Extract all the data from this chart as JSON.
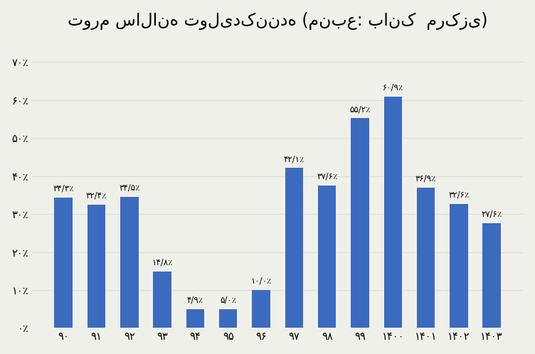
{
  "title": "تورم سالانه تولیدکننده (منبع: بانک  مرکزی)",
  "categories": [
    "۹۰",
    "۹۱",
    "۹۲",
    "۹۳",
    "۹۴",
    "۹۵",
    "۹۶",
    "۹۷",
    "۹۸",
    "۹۹",
    "۱۴۰۰",
    "۱۴۰۱",
    "۱۴۰۲",
    "۱۴۰۳"
  ],
  "values": [
    34.3,
    32.4,
    34.5,
    14.8,
    4.9,
    5.0,
    10.0,
    42.1,
    37.6,
    55.2,
    60.9,
    36.9,
    32.6,
    27.6
  ],
  "labels": [
    "۳۴/۳٪",
    "۳۲/۴٪",
    "۳۴/۵٪",
    "۱۴/۸٪",
    "۴/۹٪",
    "۵/۰٪",
    "۱۰/۰٪",
    "۴۲/۱٪",
    "۳۷/۶٪",
    "۵۵/۲٪",
    "۶۰/۹٪",
    "۳۶/۹٪",
    "۳۲/۶٪",
    "۲۷/۶٪"
  ],
  "bar_color": "#3A6BBF",
  "background_color": "#F0F0EB",
  "title_fontsize": 17,
  "label_fontsize": 8.5,
  "tick_fontsize": 10.5,
  "ytick_labels": [
    "۰٪",
    "۱۰٪",
    "۲۰٪",
    "۳۰٪",
    "۴۰٪",
    "۵۰٪",
    "۶۰٪",
    "۷۰٪"
  ],
  "ytick_values": [
    0,
    10,
    20,
    30,
    40,
    50,
    60,
    70
  ],
  "ylim": [
    0,
    75
  ],
  "grid_color": "#DCDCD8",
  "bar_width": 0.55
}
